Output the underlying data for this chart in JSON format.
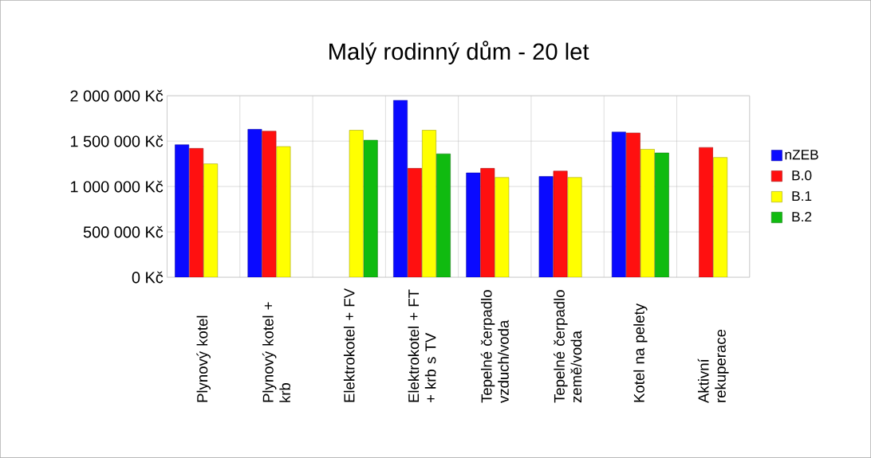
{
  "chart_data": {
    "type": "bar",
    "title": "Malý rodinný dům - 20 let",
    "categories": [
      "Plynový kotel",
      "Plynový kotel + krb",
      "Elektrokotel + FV",
      "Elektrokotel + FT + krb s TV",
      "Tepelné čerpadlo vzduch/voda",
      "Tepelné čerpadlo země/voda",
      "Kotel na pelety",
      "Aktivní rekuperace"
    ],
    "series": [
      {
        "name": "nZEB",
        "color": "#0a0aff",
        "values": [
          1460000,
          1630000,
          null,
          1950000,
          1150000,
          1110000,
          1600000,
          null
        ]
      },
      {
        "name": "B.0",
        "color": "#ff1010",
        "values": [
          1420000,
          1610000,
          null,
          1200000,
          1200000,
          1170000,
          1590000,
          1430000
        ]
      },
      {
        "name": "B.1",
        "color": "#ffff00",
        "values": [
          1250000,
          1440000,
          1620000,
          1620000,
          1100000,
          1100000,
          1410000,
          1320000
        ]
      },
      {
        "name": "B.2",
        "color": "#10bb10",
        "values": [
          null,
          null,
          1510000,
          1360000,
          null,
          null,
          1370000,
          null
        ]
      }
    ],
    "ylim": [
      0,
      2000000
    ],
    "yticks": [
      {
        "value": 0,
        "label": "0 Kč"
      },
      {
        "value": 500000,
        "label": "500 000 Kč"
      },
      {
        "value": 1000000,
        "label": "1 000 000 Kč"
      },
      {
        "value": 1500000,
        "label": "1 500 000 Kč"
      },
      {
        "value": 2000000,
        "label": "2 000 000 Kč"
      }
    ],
    "grid": true,
    "legend": "right"
  }
}
